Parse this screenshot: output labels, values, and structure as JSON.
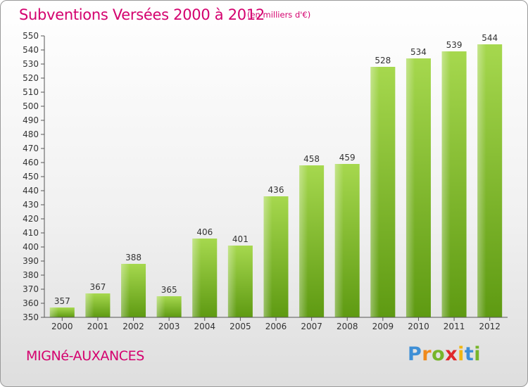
{
  "header": {
    "title": "Subventions Versées 2000 à 2012",
    "unit_note": "(en milliers d'€)"
  },
  "footer": {
    "commune": "MIGNé-AUXANCES",
    "brand": [
      "P",
      "r",
      "o",
      "x",
      "i",
      "t",
      "i"
    ],
    "brand_colors": [
      "#3e8fd6",
      "#f08a1c",
      "#77b52a",
      "#e0282a",
      "#f1b612",
      "#3e8fd6",
      "#77b52a"
    ]
  },
  "chart_data": {
    "type": "bar",
    "categories": [
      "2000",
      "2001",
      "2002",
      "2003",
      "2004",
      "2005",
      "2006",
      "2007",
      "2008",
      "2009",
      "2010",
      "2011",
      "2012"
    ],
    "values": [
      357,
      367,
      388,
      365,
      406,
      401,
      436,
      458,
      459,
      528,
      534,
      539,
      544
    ],
    "ylim": [
      350,
      550
    ],
    "ytick_step": 10,
    "grid": false,
    "bar_color_top": "#a6d84e",
    "bar_color_bottom": "#5e9a12"
  }
}
